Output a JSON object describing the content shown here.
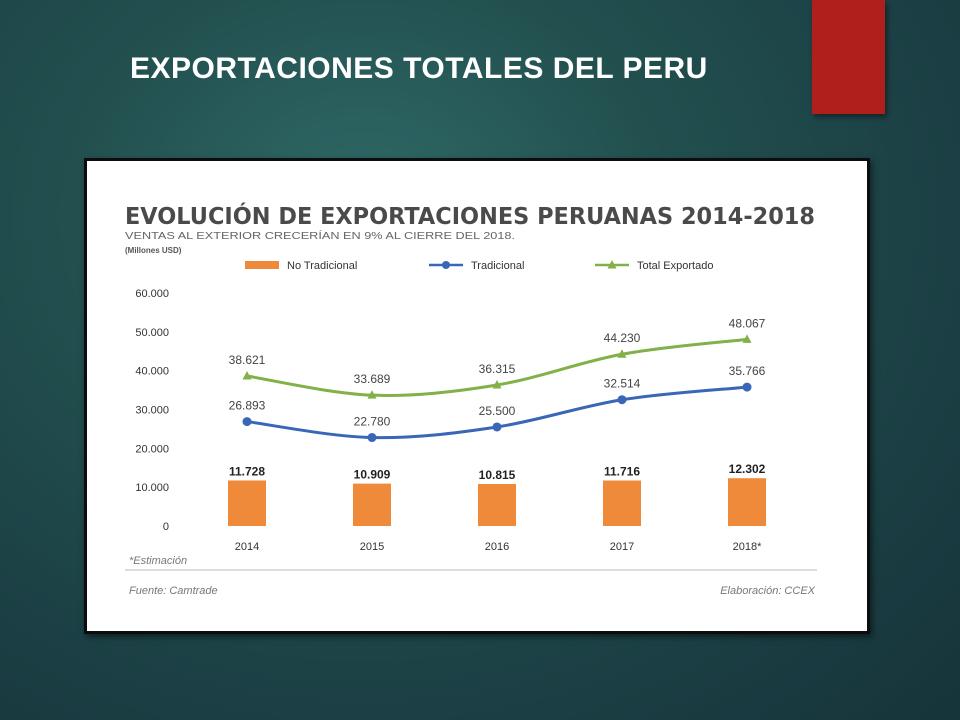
{
  "slide": {
    "title": "EXPORTACIONES TOTALES DEL PERU"
  },
  "colors": {
    "accent_red": "#b01f1b",
    "bar_orange": "#ee8a3a",
    "line_blue": "#3a66b7",
    "line_green": "#82b049"
  },
  "chart_data": {
    "type": "bar+line",
    "title": "EVOLUCIÓN DE EXPORTACIONES PERUANAS 2014-2018",
    "subtitle": "VENTAS AL EXTERIOR CRECERÍAN EN 9% AL CIERRE DEL 2018.",
    "units": "(Millones USD)",
    "categories": [
      "2014",
      "2015",
      "2016",
      "2017",
      "2018*"
    ],
    "series": [
      {
        "name": "No Tradicional",
        "type": "bar",
        "color": "#ee8a3a",
        "values": [
          11728,
          10909,
          10815,
          11716,
          12302
        ],
        "labels": [
          "11.728",
          "10.909",
          "10.815",
          "11.716",
          "12.302"
        ]
      },
      {
        "name": "Tradicional",
        "type": "line",
        "color": "#3a66b7",
        "values": [
          26893,
          22780,
          25500,
          32514,
          35766
        ],
        "labels": [
          "26.893",
          "22.780",
          "25.500",
          "32.514",
          "35.766"
        ]
      },
      {
        "name": "Total Exportado",
        "type": "line",
        "color": "#82b049",
        "values": [
          38621,
          33689,
          36315,
          44230,
          48067
        ],
        "labels": [
          "38.621",
          "33.689",
          "36.315",
          "44.230",
          "48.067"
        ]
      }
    ],
    "y_ticks": [
      "60.000",
      "50.000",
      "40.000",
      "30.000",
      "20.000",
      "10.000",
      "0"
    ],
    "ylim": [
      0,
      60000
    ],
    "legend": "top",
    "grid": false,
    "footnote": "*Estimación",
    "source": "Fuente: Camtrade",
    "credit": "Elaboración: CCEX"
  }
}
